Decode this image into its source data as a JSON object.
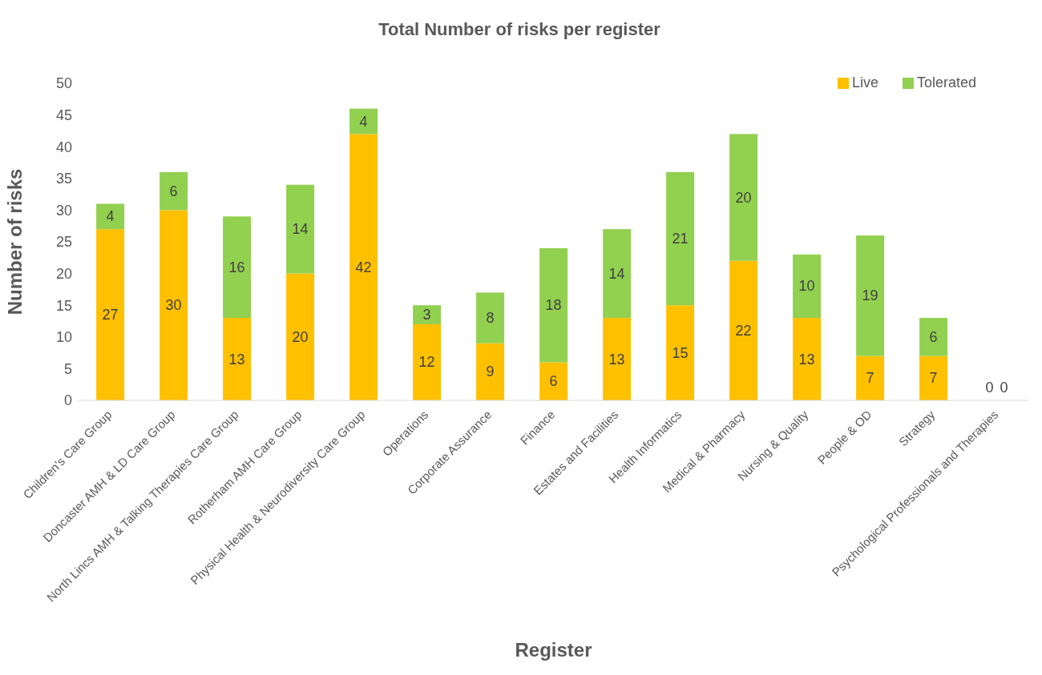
{
  "chart_data": {
    "type": "bar",
    "title": "Total Number of risks per register",
    "xlabel": "Register",
    "ylabel": "Number of risks",
    "categories": [
      "Children's Care Group",
      "Doncaster AMH & LD Care Group",
      "North Lincs AMH & Talking Therapies Care Group",
      "Rotherham AMH Care Group",
      "Physical Health & Neurodiversity Care Group",
      "Operations",
      "Corporate Assurance",
      "Finance",
      "Estates and Facilities",
      "Health Informatics",
      "Medical & Pharmacy",
      "Nursing & Quality",
      "People & OD",
      "Strategy",
      "Psychological Professionals and Therapies"
    ],
    "series": [
      {
        "name": "Live",
        "color": "#ffc000",
        "values": [
          27,
          30,
          13,
          20,
          42,
          12,
          9,
          6,
          13,
          15,
          22,
          13,
          7,
          7,
          0
        ]
      },
      {
        "name": "Tolerated",
        "color": "#92d050",
        "values": [
          4,
          6,
          16,
          14,
          4,
          3,
          8,
          18,
          14,
          21,
          20,
          10,
          19,
          6,
          0
        ]
      }
    ],
    "stacked": true,
    "ylim": [
      0,
      50
    ],
    "yticks": [
      0,
      5,
      10,
      15,
      20,
      25,
      30,
      35,
      40,
      45,
      50
    ],
    "grid": false,
    "legend": "top right",
    "data_labels": true
  }
}
